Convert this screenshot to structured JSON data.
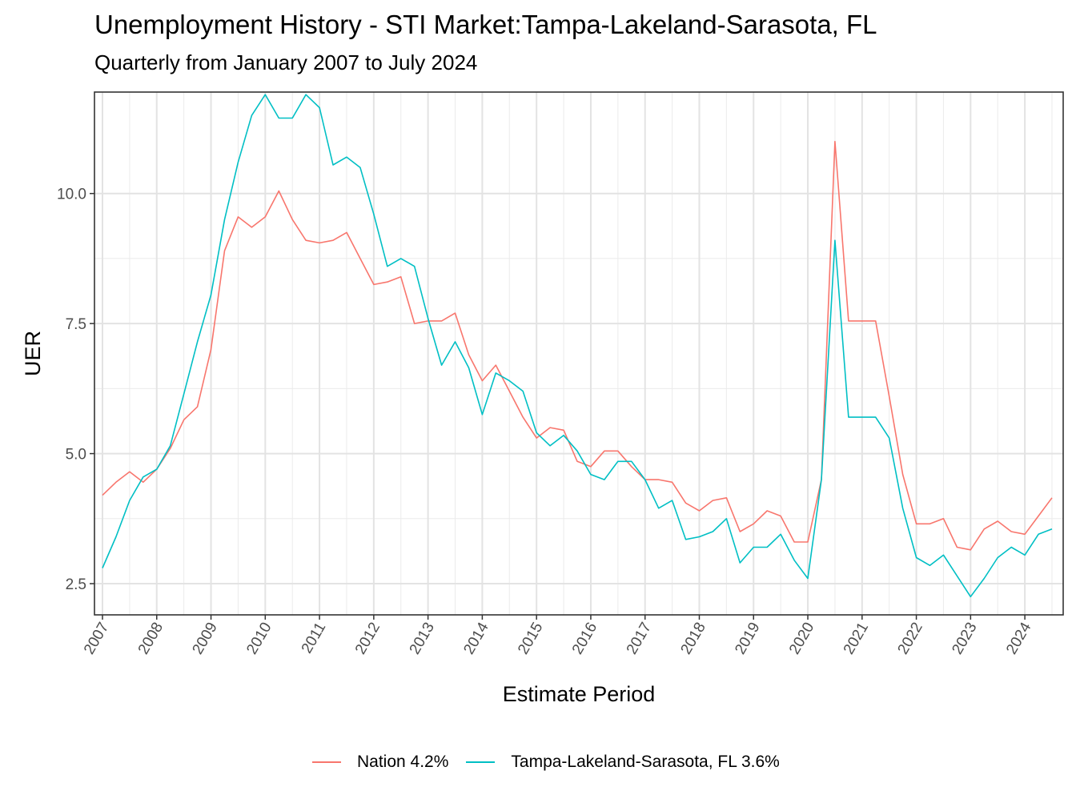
{
  "title": "Unemployment History - STI Market:Tampa-Lakeland-Sarasota, FL",
  "subtitle": "Quarterly from January 2007 to July 2024",
  "legend": [
    {
      "label": "Nation 4.2%",
      "color": "#F8766D"
    },
    {
      "label": "Tampa-Lakeland-Sarasota, FL 3.6%",
      "color": "#00BFC4"
    }
  ],
  "chart_data": {
    "type": "line",
    "xlabel": "Estimate Period",
    "ylabel": "UER",
    "xlim": [
      2007,
      2024.5
    ],
    "ylim": [
      1.9,
      11.95
    ],
    "yticks": [
      "2.5",
      "5.0",
      "7.5",
      "10.0"
    ],
    "xticks": [
      "2007",
      "2008",
      "2009",
      "2010",
      "2011",
      "2012",
      "2013",
      "2014",
      "2015",
      "2016",
      "2017",
      "2018",
      "2019",
      "2020",
      "2021",
      "2022",
      "2023",
      "2024"
    ],
    "grid": true,
    "legend_position": "bottom",
    "x": [
      2007,
      2007.25,
      2007.5,
      2007.75,
      2008,
      2008.25,
      2008.5,
      2008.75,
      2009,
      2009.25,
      2009.5,
      2009.75,
      2010,
      2010.25,
      2010.5,
      2010.75,
      2011,
      2011.25,
      2011.5,
      2011.75,
      2012,
      2012.25,
      2012.5,
      2012.75,
      2013,
      2013.25,
      2013.5,
      2013.75,
      2014,
      2014.25,
      2014.5,
      2014.75,
      2015,
      2015.25,
      2015.5,
      2015.75,
      2016,
      2016.25,
      2016.5,
      2016.75,
      2017,
      2017.25,
      2017.5,
      2017.75,
      2018,
      2018.25,
      2018.5,
      2018.75,
      2019,
      2019.25,
      2019.5,
      2019.75,
      2020,
      2020.25,
      2020.5,
      2020.75,
      2021,
      2021.25,
      2021.5,
      2021.75,
      2022,
      2022.25,
      2022.5,
      2022.75,
      2023,
      2023.25,
      2023.5,
      2023.75,
      2024,
      2024.25,
      2024.5
    ],
    "series": [
      {
        "name": "Nation 4.2%",
        "color": "#F8766D",
        "values": [
          4.2,
          4.45,
          4.65,
          4.45,
          4.7,
          5.1,
          5.65,
          5.9,
          7.0,
          8.9,
          9.55,
          9.35,
          9.55,
          10.05,
          9.5,
          9.1,
          9.05,
          9.1,
          9.25,
          8.75,
          8.25,
          8.3,
          8.4,
          7.5,
          7.55,
          7.55,
          7.7,
          6.9,
          6.4,
          6.7,
          6.2,
          5.7,
          5.3,
          5.5,
          5.45,
          4.85,
          4.75,
          5.05,
          5.05,
          4.75,
          4.5,
          4.5,
          4.45,
          4.05,
          3.9,
          4.1,
          4.15,
          3.5,
          3.65,
          3.9,
          3.8,
          3.3,
          3.3,
          4.5,
          11.0,
          7.55,
          7.55,
          7.55,
          6.1,
          4.6,
          3.65,
          3.65,
          3.75,
          3.2,
          3.15,
          3.55,
          3.7,
          3.5,
          3.45,
          3.8,
          4.15
        ]
      },
      {
        "name": "Tampa-Lakeland-Sarasota, FL 3.6%",
        "color": "#00BFC4",
        "values": [
          2.8,
          3.4,
          4.1,
          4.55,
          4.7,
          5.15,
          6.15,
          7.15,
          8.05,
          9.5,
          10.6,
          11.5,
          11.9,
          11.45,
          11.45,
          11.9,
          11.65,
          10.55,
          10.7,
          10.5,
          9.6,
          8.6,
          8.75,
          8.6,
          7.6,
          6.7,
          7.15,
          6.65,
          5.75,
          6.55,
          6.4,
          6.2,
          5.4,
          5.15,
          5.35,
          5.05,
          4.6,
          4.5,
          4.85,
          4.85,
          4.5,
          3.95,
          4.1,
          3.35,
          3.4,
          3.5,
          3.75,
          2.9,
          3.2,
          3.2,
          3.45,
          2.95,
          2.6,
          4.5,
          9.1,
          5.7,
          5.7,
          5.7,
          5.3,
          3.95,
          3.0,
          2.85,
          3.05,
          2.65,
          2.25,
          2.6,
          3.0,
          3.2,
          3.05,
          3.45,
          3.55
        ]
      }
    ]
  }
}
